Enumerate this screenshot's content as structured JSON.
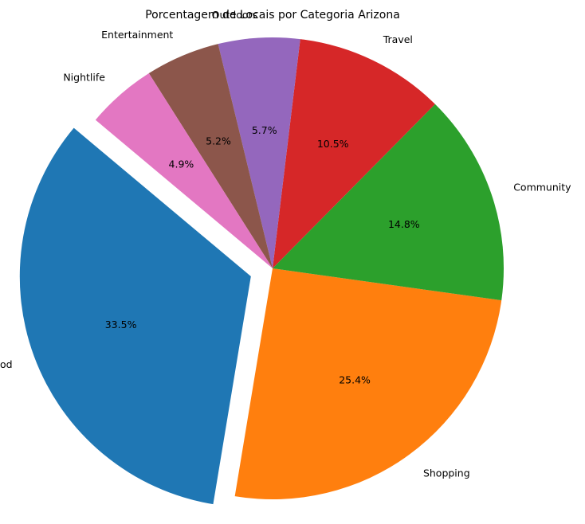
{
  "chart_data": {
    "type": "pie",
    "title": "Porcentagem de Locais por Categoria Arizona",
    "start_angle_deg": 140,
    "direction": "counterclockwise",
    "slices": [
      {
        "label": "Food",
        "value": 33.5,
        "pct_text": "33.5%",
        "color": "#1f77b4",
        "explode": 0.1
      },
      {
        "label": "Shopping",
        "value": 25.4,
        "pct_text": "25.4%",
        "color": "#ff7f0e",
        "explode": 0
      },
      {
        "label": "Community",
        "value": 14.8,
        "pct_text": "14.8%",
        "color": "#2ca02c",
        "explode": 0
      },
      {
        "label": "Travel",
        "value": 10.5,
        "pct_text": "10.5%",
        "color": "#d62728",
        "explode": 0
      },
      {
        "label": "Outdoors",
        "value": 5.7,
        "pct_text": "5.7%",
        "color": "#9467bd",
        "explode": 0
      },
      {
        "label": "Entertainment",
        "value": 5.2,
        "pct_text": "5.2%",
        "color": "#8c564b",
        "explode": 0
      },
      {
        "label": "Nightlife",
        "value": 4.9,
        "pct_text": "4.9%",
        "color": "#e377c2",
        "explode": 0
      }
    ]
  }
}
